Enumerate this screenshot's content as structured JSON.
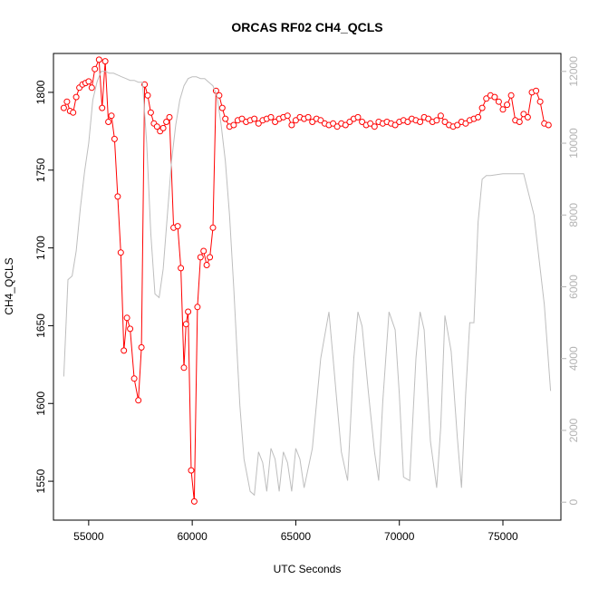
{
  "chart_data": {
    "type": "line",
    "title": "ORCAS RF02 CH4_QCLS",
    "xlabel": "UTC Seconds",
    "ylabel": "CH4_QCLS",
    "y2label": "",
    "xlim": [
      53300,
      77800
    ],
    "ylim": [
      1525,
      1825
    ],
    "y2lim": [
      -500,
      12500
    ],
    "x_ticks": [
      55000,
      60000,
      65000,
      70000,
      75000
    ],
    "y_ticks": [
      1550,
      1600,
      1650,
      1700,
      1750,
      1800
    ],
    "y2_ticks": [
      0,
      2000,
      4000,
      6000,
      8000,
      10000,
      12000
    ],
    "grid": false,
    "colors": {
      "primary": "#ff0000",
      "secondary": "#bebebe",
      "axis": "#000000",
      "right_axis": "#b3b3b3"
    },
    "series": [
      {
        "axis": "left",
        "style": "line-points",
        "x": [
          53800,
          53950,
          54100,
          54250,
          54400,
          54550,
          54700,
          54850,
          55000,
          55150,
          55300,
          55500,
          55650,
          55800,
          55950,
          56100,
          56250,
          56400,
          56550,
          56700,
          56850,
          57000,
          57200,
          57400,
          57550,
          57700,
          57850,
          58000,
          58150,
          58300,
          58450,
          58600,
          58750,
          58900,
          59100,
          59300,
          59450,
          59600,
          59700,
          59800,
          59950,
          60100,
          60250,
          60400,
          60550,
          60700,
          60850,
          61000,
          61150,
          61300,
          61450,
          61600,
          61800,
          62000,
          62200,
          62400,
          62600,
          62800,
          63000,
          63200,
          63400,
          63600,
          63800,
          64000,
          64200,
          64400,
          64600,
          64800,
          65000,
          65200,
          65400,
          65600,
          65800,
          66000,
          66200,
          66400,
          66600,
          66800,
          67000,
          67200,
          67400,
          67600,
          67800,
          68000,
          68200,
          68400,
          68600,
          68800,
          69000,
          69200,
          69400,
          69600,
          69800,
          70000,
          70200,
          70400,
          70600,
          70800,
          71000,
          71200,
          71400,
          71600,
          71800,
          72000,
          72200,
          72400,
          72600,
          72800,
          73000,
          73200,
          73400,
          73600,
          73800,
          74000,
          74200,
          74400,
          74600,
          74800,
          75000,
          75200,
          75400,
          75600,
          75800,
          76000,
          76200,
          76400,
          76600,
          76800,
          77000,
          77200
        ],
        "y": [
          1790,
          1794,
          1788,
          1787,
          1797,
          1803,
          1805,
          1806,
          1807,
          1803,
          1815,
          1821,
          1790,
          1820,
          1781,
          1785,
          1770,
          1733,
          1697,
          1634,
          1655,
          1648,
          1616,
          1602,
          1636,
          1805,
          1798,
          1787,
          1780,
          1778,
          1775,
          1777,
          1781,
          1784,
          1713,
          1714,
          1687,
          1623,
          1651,
          1659,
          1557,
          1537,
          1662,
          1694,
          1698,
          1689,
          1694,
          1713,
          1801,
          1798,
          1790,
          1783,
          1778,
          1779,
          1782,
          1783,
          1781,
          1782,
          1783,
          1780,
          1782,
          1783,
          1784,
          1781,
          1783,
          1784,
          1785,
          1779,
          1782,
          1784,
          1783,
          1784,
          1781,
          1783,
          1782,
          1780,
          1779,
          1780,
          1778,
          1780,
          1779,
          1781,
          1783,
          1784,
          1781,
          1779,
          1780,
          1778,
          1781,
          1780,
          1781,
          1780,
          1779,
          1781,
          1782,
          1781,
          1783,
          1782,
          1781,
          1784,
          1783,
          1781,
          1782,
          1785,
          1781,
          1779,
          1778,
          1779,
          1781,
          1780,
          1782,
          1783,
          1784,
          1790,
          1796,
          1798,
          1797,
          1794,
          1789,
          1792,
          1798,
          1782,
          1781,
          1786,
          1784,
          1800,
          1801,
          1794,
          1780,
          1779
        ]
      },
      {
        "axis": "right",
        "style": "line",
        "x": [
          53800,
          54000,
          54200,
          54400,
          54600,
          54800,
          55000,
          55200,
          55400,
          55600,
          55800,
          56000,
          56200,
          56400,
          56600,
          56800,
          57000,
          57200,
          57400,
          57600,
          57800,
          58000,
          58200,
          58400,
          58600,
          58800,
          59000,
          59200,
          59400,
          59600,
          59800,
          60000,
          60200,
          60400,
          60600,
          60800,
          61000,
          61200,
          61400,
          61600,
          61800,
          62000,
          62200,
          62300,
          62500,
          62800,
          63000,
          63200,
          63400,
          63600,
          63800,
          64000,
          64200,
          64400,
          64600,
          64800,
          65000,
          65200,
          65400,
          65800,
          66200,
          66600,
          66800,
          67000,
          67200,
          67500,
          67800,
          68000,
          68200,
          68500,
          68800,
          69000,
          69200,
          69500,
          69800,
          70000,
          70200,
          70500,
          70800,
          71000,
          71200,
          71500,
          71800,
          72000,
          72200,
          72500,
          72800,
          73000,
          73200,
          73400,
          73600,
          73800,
          74000,
          74200,
          74400,
          75000,
          75500,
          76000,
          76500,
          77000,
          77300
        ],
        "y": [
          3500,
          6200,
          6300,
          7000,
          8200,
          9200,
          10000,
          11200,
          11700,
          12000,
          12000,
          11950,
          11950,
          11900,
          11850,
          11800,
          11750,
          11750,
          11700,
          11700,
          10000,
          7500,
          5800,
          5700,
          6500,
          8000,
          9500,
          10500,
          11200,
          11600,
          11800,
          11850,
          11850,
          11800,
          11800,
          11700,
          11600,
          11300,
          10500,
          9500,
          8000,
          6000,
          3800,
          2700,
          1200,
          300,
          200,
          1400,
          1100,
          300,
          1500,
          1200,
          300,
          1400,
          1100,
          300,
          1500,
          1200,
          400,
          1500,
          4000,
          5300,
          4000,
          2700,
          1400,
          600,
          4000,
          5300,
          4900,
          3100,
          1400,
          600,
          2800,
          5300,
          4800,
          3000,
          700,
          600,
          4000,
          5300,
          4800,
          1700,
          400,
          2100,
          5200,
          4200,
          1800,
          400,
          3000,
          5000,
          5000,
          7800,
          9000,
          9100,
          9100,
          9150,
          9150,
          9150,
          8000,
          5500,
          3100
        ]
      }
    ]
  }
}
